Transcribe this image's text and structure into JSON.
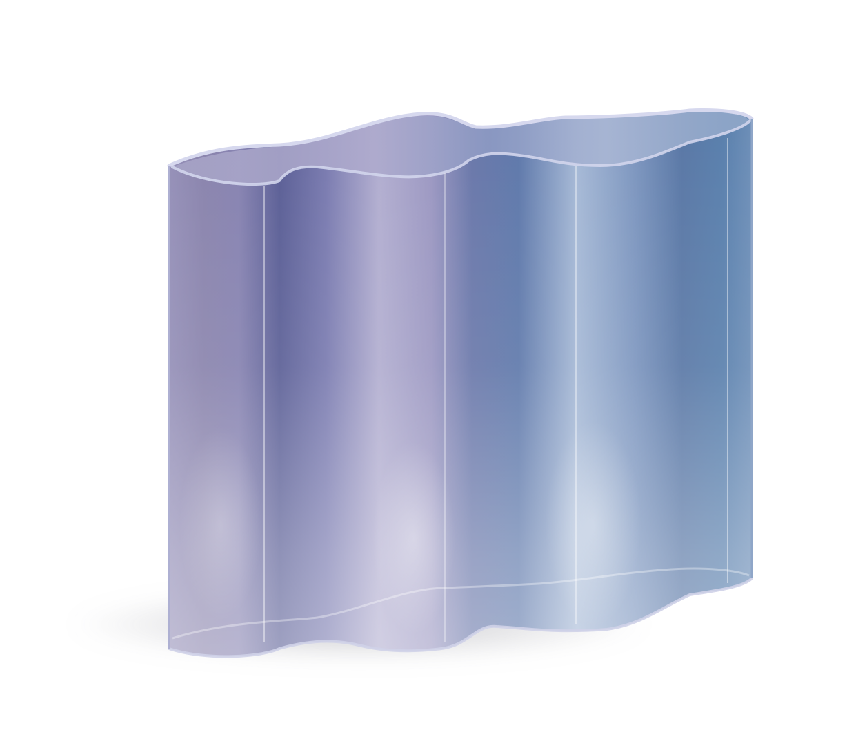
{
  "image": {
    "subject": "wavy-glass-vase",
    "background_color": "#ffffff",
    "colors": {
      "violet_left": "#7f7aa8",
      "indigo_mid": "#5d6497",
      "lavender_highlight": "#c9c8de",
      "steel_blue_right": "#5a7da9",
      "pale_blue_highlight": "#a9bcd6",
      "rim": "#c6c9e3",
      "shadow": "#c8c8cc"
    }
  }
}
